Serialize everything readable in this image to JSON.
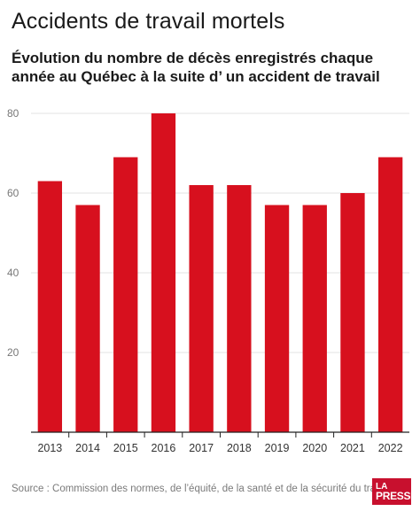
{
  "header": {
    "title": "Accidents de travail mortels",
    "subtitle": "Évolution du nombre de décès enregistrés chaque année au Québec à la suite d’ un accident de travail"
  },
  "footer": {
    "source": "Source : Commission des normes, de l’équité, de la santé et de la sécurité du travail"
  },
  "logo": {
    "line1": "LA",
    "line2": "PRESSE"
  },
  "colors": {
    "bar": "#d7101e",
    "grid": "#e3e3e3",
    "axis": "#222222"
  },
  "chart_data": {
    "type": "bar",
    "title": "Accidents de travail mortels",
    "xlabel": "",
    "ylabel": "",
    "categories": [
      "2013",
      "2014",
      "2015",
      "2016",
      "2017",
      "2018",
      "2019",
      "2020",
      "2021",
      "2022"
    ],
    "values": [
      63,
      57,
      69,
      80,
      62,
      62,
      57,
      57,
      60,
      69
    ],
    "ylim": [
      0,
      80
    ],
    "yticks": [
      20,
      40,
      60,
      80
    ],
    "grid": true,
    "legend": "none"
  }
}
